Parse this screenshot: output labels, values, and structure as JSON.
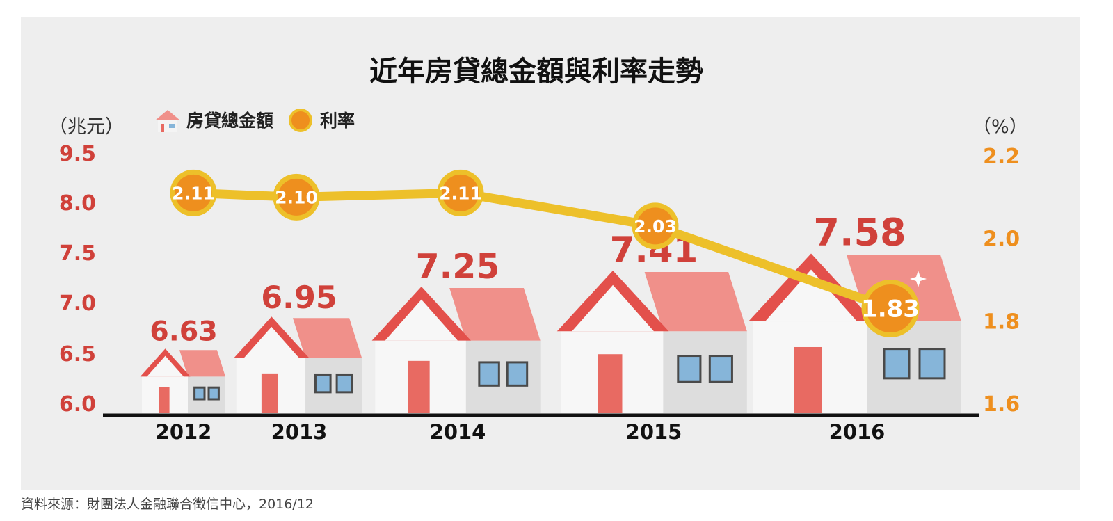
{
  "colors": {
    "background": "#ffffff",
    "panel": "#eeeeee",
    "amount": "#d0413a",
    "rate": "#ee8f1e",
    "rate_line": "#edc02a",
    "roof": "#f0908a",
    "roof_edge": "#e3504b",
    "wall_light": "#f7f7f7",
    "wall_dark": "#dddddd",
    "door": "#e86a62",
    "window": "#86b5d9",
    "window_frame": "#4a4a4a",
    "axis": "#111111"
  },
  "chart_data": {
    "type": "bar",
    "title": "近年房貸總金額與利率走勢",
    "categories": [
      "2012",
      "2013",
      "2014",
      "2015",
      "2016"
    ],
    "series": [
      {
        "name": "房貸總金額",
        "axis": "left",
        "mark": "house",
        "values": [
          6.63,
          6.95,
          7.25,
          7.41,
          7.58
        ],
        "labels": [
          "6.63",
          "6.95",
          "7.25",
          "7.41",
          "7.58"
        ]
      },
      {
        "name": "利率",
        "axis": "right",
        "mark": "line",
        "values": [
          2.11,
          2.1,
          2.11,
          2.03,
          1.83
        ],
        "labels": [
          "2.11",
          "2.10",
          "2.11",
          "2.03",
          "1.83"
        ]
      }
    ],
    "y_left": {
      "unit": "（兆元）",
      "range": [
        6.0,
        9.5
      ],
      "ticks": [
        "6.0",
        "6.5",
        "7.0",
        "7.5",
        "8.0",
        "9.5"
      ]
    },
    "y_right": {
      "unit": "（%）",
      "range": [
        1.6,
        2.2
      ],
      "ticks": [
        "1.6",
        "1.8",
        "2.0",
        "2.2"
      ]
    },
    "legend": {
      "placement": "top-left",
      "items": [
        "房貸總金額",
        "利率"
      ]
    },
    "grid": false
  },
  "source": "資料來源：財團法人金融聯合徵信中心，2016/12"
}
